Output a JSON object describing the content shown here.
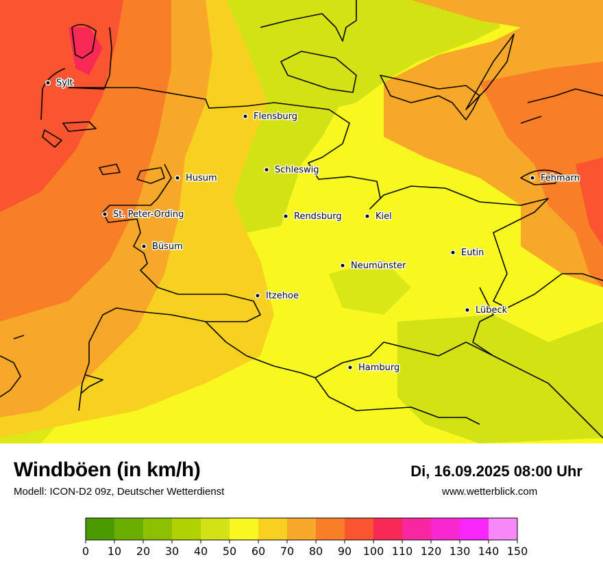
{
  "header": {
    "title": "Windböen (in km/h)",
    "model": "Modell: ICON-D2 09z, Deutscher Wetterdienst",
    "datetime": "Di, 16.09.2025 08:00 Uhr",
    "website": "www.wetterblick.com"
  },
  "cities": [
    {
      "name": "Sylt"
    },
    {
      "name": "Flensburg"
    },
    {
      "name": "Schleswig"
    },
    {
      "name": "Husum"
    },
    {
      "name": "St. Peter-Ording"
    },
    {
      "name": "Rendsburg"
    },
    {
      "name": "Kiel"
    },
    {
      "name": "Fehmarn"
    },
    {
      "name": "Büsum"
    },
    {
      "name": "Neumünster"
    },
    {
      "name": "Eutin"
    },
    {
      "name": "Itzehoe"
    },
    {
      "name": "Lübeck"
    },
    {
      "name": "Hamburg"
    }
  ],
  "legend": {
    "ticks": [
      "0",
      "10",
      "20",
      "30",
      "40",
      "50",
      "60",
      "70",
      "80",
      "90",
      "100",
      "110",
      "120",
      "130",
      "140",
      "150"
    ],
    "colors": [
      "#4a9a00",
      "#6aae00",
      "#8cc000",
      "#b0d200",
      "#d2e214",
      "#f8f820",
      "#f8d020",
      "#f8a828",
      "#f87e28",
      "#f85530",
      "#f82a55",
      "#f826a0",
      "#f826d0",
      "#f826f8",
      "#f888f8"
    ]
  },
  "map_colors": {
    "green": "#c4dc1e",
    "yellow": "#f8f820",
    "yellow_orange": "#f8d020",
    "orange": "#f8a828",
    "orange_red": "#f87e28",
    "red": "#f85530",
    "magenta": "#f82a55"
  }
}
